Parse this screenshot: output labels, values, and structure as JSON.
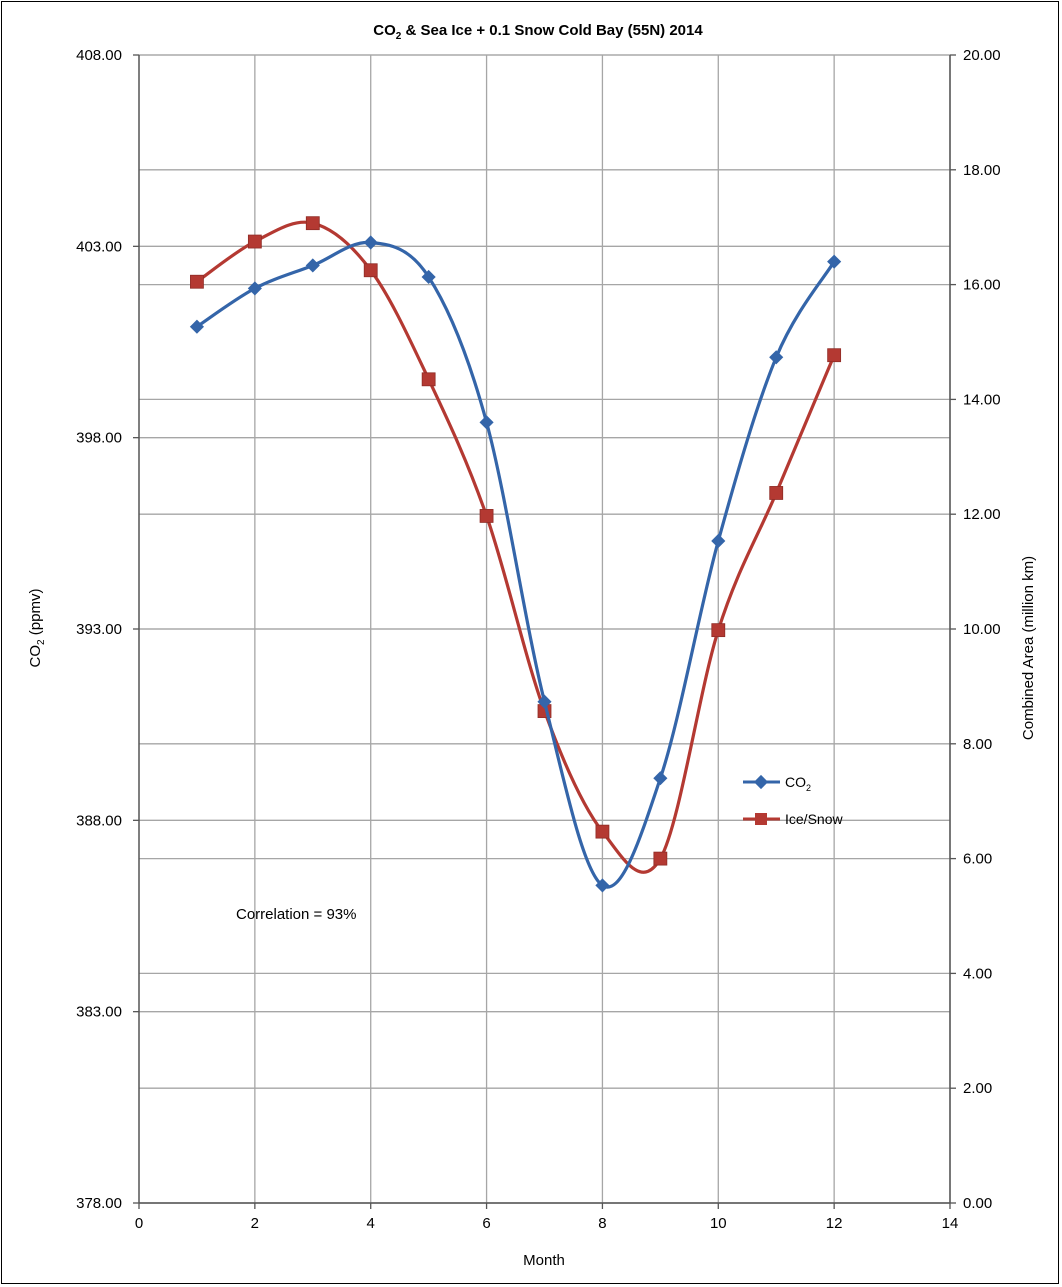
{
  "chart_data": {
    "type": "line",
    "title": {
      "pre": "CO",
      "sub": "2",
      "post": " & Sea Ice + 0.1 Snow Cold Bay (55N) 2014"
    },
    "xlabel": "Month",
    "ylabel_left": {
      "pre": "CO",
      "sub": "2",
      "post": " (ppmv)"
    },
    "ylabel_right": "Combined Area (million km)",
    "xlim": [
      0,
      14
    ],
    "x_ticks": [
      "0",
      "2",
      "4",
      "6",
      "8",
      "10",
      "12",
      "14"
    ],
    "ylim_left": [
      378,
      408
    ],
    "y_ticks_left": [
      "378.00",
      "383.00",
      "388.00",
      "393.00",
      "398.00",
      "403.00",
      "408.00"
    ],
    "ylim_right": [
      0,
      20
    ],
    "y_ticks_right": [
      "0.00",
      "2.00",
      "4.00",
      "6.00",
      "8.00",
      "10.00",
      "12.00",
      "14.00",
      "16.00",
      "18.00",
      "20.00"
    ],
    "grid": true,
    "legend_placement": "right",
    "annotation": "Correlation = 93%",
    "x": [
      1,
      2,
      3,
      4,
      5,
      6,
      7,
      8,
      9,
      10,
      11,
      12
    ],
    "series": [
      {
        "name": {
          "pre": "CO",
          "sub": "2"
        },
        "axis": "left",
        "color": "#3465a9",
        "marker": "diamond",
        "values": [
          400.9,
          401.9,
          402.5,
          403.1,
          402.2,
          398.4,
          391.1,
          386.3,
          389.1,
          395.3,
          400.1,
          402.6
        ]
      },
      {
        "name": "Ice/Snow",
        "axis": "right",
        "color": "#b43932",
        "marker": "square",
        "values": [
          16.05,
          16.75,
          17.07,
          16.25,
          14.35,
          11.97,
          8.57,
          6.47,
          6.0,
          9.98,
          12.37,
          14.77
        ]
      }
    ]
  }
}
